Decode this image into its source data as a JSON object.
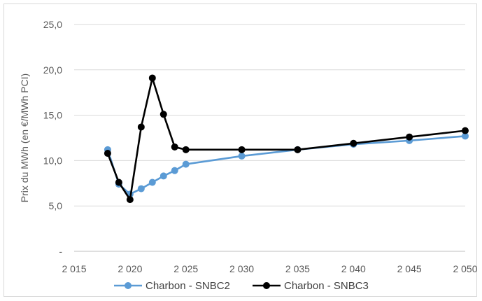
{
  "chart_data": {
    "type": "line",
    "title": "",
    "xlabel": "",
    "ylabel": "Prix du MWh (en €/MWh PCI)",
    "xlim": [
      2015,
      2050
    ],
    "ylim": [
      0,
      25
    ],
    "x_ticks": [
      2015,
      2020,
      2025,
      2030,
      2035,
      2040,
      2045,
      2050
    ],
    "x_tick_labels": [
      "2 015",
      "2 020",
      "2 025",
      "2 030",
      "2 035",
      "2 040",
      "2 045",
      "2 050"
    ],
    "y_ticks": [
      0,
      5,
      10,
      15,
      20,
      25
    ],
    "y_tick_labels": [
      "-",
      "5,0",
      "10,0",
      "15,0",
      "20,0",
      "25,0"
    ],
    "grid": "horizontal",
    "legend_position": "bottom",
    "series": [
      {
        "name": "Charbon -  SNBC2",
        "color": "#5b9bd5",
        "x": [
          2018,
          2019,
          2020,
          2021,
          2022,
          2023,
          2024,
          2025,
          2030,
          2035,
          2040,
          2045,
          2050
        ],
        "values": [
          11.2,
          7.4,
          6.3,
          6.9,
          7.6,
          8.3,
          8.9,
          9.6,
          10.5,
          11.2,
          11.8,
          12.2,
          12.7
        ]
      },
      {
        "name": "Charbon - SNBC3",
        "color": "#000000",
        "x": [
          2018,
          2019,
          2020,
          2021,
          2022,
          2023,
          2024,
          2025,
          2030,
          2035,
          2040,
          2045,
          2050
        ],
        "values": [
          10.8,
          7.6,
          5.7,
          13.7,
          19.1,
          15.1,
          11.5,
          11.2,
          11.2,
          11.2,
          11.9,
          12.6,
          13.3
        ]
      }
    ]
  }
}
